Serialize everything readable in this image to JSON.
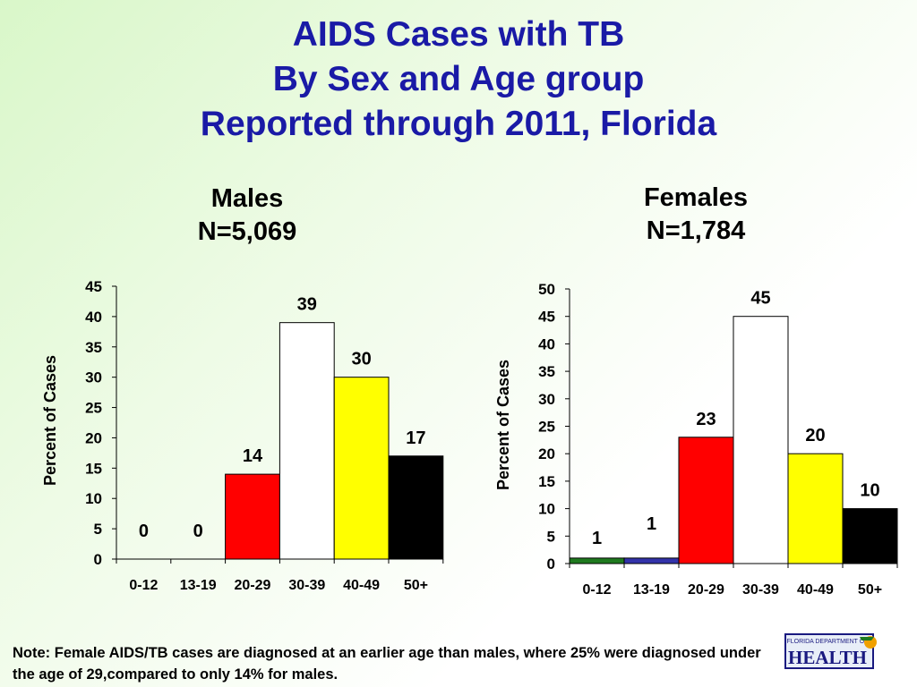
{
  "title": {
    "line1": "AIDS Cases with TB",
    "line2": "By Sex and Age group",
    "line3": "Reported through 2011, Florida"
  },
  "chart_data": [
    {
      "type": "bar",
      "title": "Males",
      "subtitle": "N=5,069",
      "ylabel": "Percent of Cases",
      "xlabel": "",
      "categories": [
        "0-12",
        "13-19",
        "20-29",
        "30-39",
        "40-49",
        "50+"
      ],
      "values": [
        0,
        0,
        14,
        39,
        30,
        17
      ],
      "data_labels": [
        "0",
        "0",
        "14",
        "39",
        "30",
        "17"
      ],
      "colors": [
        "#1f7a1f",
        "#3333aa",
        "#ff0000",
        "#ffffff",
        "#ffff00",
        "#000000"
      ],
      "ylim": [
        0,
        45
      ],
      "yticks": [
        0,
        5,
        10,
        15,
        20,
        25,
        30,
        35,
        40,
        45
      ],
      "grid": false
    },
    {
      "type": "bar",
      "title": "Females",
      "subtitle": "N=1,784",
      "ylabel": "Percent of Cases",
      "xlabel": "",
      "categories": [
        "0-12",
        "13-19",
        "20-29",
        "30-39",
        "40-49",
        "50+"
      ],
      "values": [
        1,
        1,
        23,
        45,
        20,
        10
      ],
      "data_labels": [
        "1",
        "1",
        "23",
        "45",
        "20",
        "10"
      ],
      "colors": [
        "#1f7a1f",
        "#3333aa",
        "#ff0000",
        "#ffffff",
        "#ffff00",
        "#000000"
      ],
      "ylim": [
        0,
        50
      ],
      "yticks": [
        0,
        5,
        10,
        15,
        20,
        25,
        30,
        35,
        40,
        45,
        50
      ],
      "grid": false
    }
  ],
  "note": "Note:  Female AIDS/TB cases are diagnosed at an earlier age than males, where 25% were diagnosed under the age of 29,compared to only 14% for males.",
  "logo": {
    "icon": "florida-health-logo",
    "small_text": "FLORIDA DEPARTMENT OF",
    "big_text": "HEALTH"
  }
}
